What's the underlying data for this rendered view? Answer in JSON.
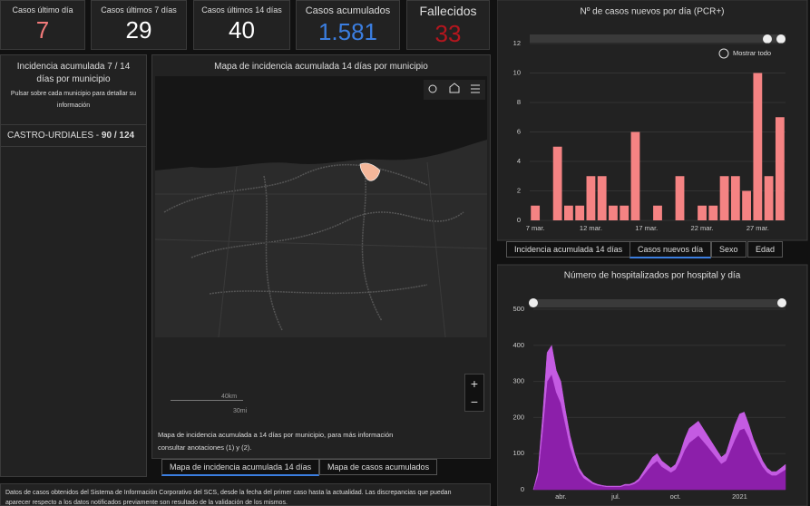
{
  "kpis": [
    {
      "label": "Casos último día",
      "value": "7",
      "color": "#f27a7a"
    },
    {
      "label": "Casos últimos 7 días",
      "value": "29",
      "color": "#ffffff"
    },
    {
      "label": "Casos últimos 14 días",
      "value": "40",
      "color": "#ffffff"
    },
    {
      "label": "Casos acumulados",
      "value": "1.581",
      "color": "#3b7ee0"
    },
    {
      "label": "Fallecidos",
      "value": "33",
      "color": "#b5161e"
    }
  ],
  "left_panel": {
    "title": "Incidencia acumulada 7 / 14 días por municipio",
    "hint": "Pulsar sobre cada municipio para detallar su información",
    "selection": {
      "name": "CASTRO-URDIALES",
      "separator": "-",
      "value": "90 / 124"
    }
  },
  "map": {
    "title": "Mapa de incidencia acumulada 14 días por municipio",
    "scale_km": "40km",
    "scale_mi": "30mi",
    "caption": "Mapa de incidencia acumulada a 14 días por municipio, para más información consultar anotaciones (1) y (2).",
    "tabs": [
      "Mapa de incidencia acumulada 14 días",
      "Mapa de casos acumulados"
    ]
  },
  "reset_zoom": "Mostrar todo",
  "chart_tabs": [
    "Incidencia acumulada 14 días",
    "Casos nuevos día",
    "Sexo",
    "Edad"
  ],
  "footer_text": "Datos de casos obtenidos del Sistema de Información Corporativo del SCS, desde la fecha del primer caso hasta la actualidad. Las discrepancias que puedan aparecer respecto a los datos notificados previamente son resultado de la validación de los mismos.",
  "chart_data": [
    {
      "type": "bar",
      "title": "Nº de casos nuevos por día (PCR+)",
      "categories": [
        "7 mar.",
        null,
        null,
        null,
        null,
        "12 mar.",
        null,
        null,
        null,
        null,
        "17 mar.",
        null,
        null,
        null,
        null,
        "22 mar.",
        null,
        null,
        null,
        null,
        "27 mar.",
        null,
        null
      ],
      "values": [
        1,
        0,
        5,
        1,
        1,
        3,
        3,
        1,
        1,
        6,
        0,
        1,
        0,
        3,
        0,
        1,
        1,
        3,
        3,
        2,
        10,
        3,
        7
      ],
      "color": "#f58383",
      "ylim": [
        0,
        12
      ],
      "yticks": [
        0,
        2,
        4,
        6,
        8,
        10,
        12
      ],
      "grid": true
    },
    {
      "type": "area",
      "title": "Número de hospitalizados por hospital y día",
      "categories": [
        null,
        null,
        null,
        null,
        null,
        null,
        "abr.",
        null,
        null,
        null,
        null,
        null,
        null,
        null,
        null,
        null,
        null,
        null,
        "jul.",
        null,
        null,
        null,
        null,
        null,
        null,
        null,
        null,
        null,
        null,
        null,
        null,
        "oct.",
        null,
        null,
        null,
        null,
        null,
        null,
        null,
        null,
        null,
        null,
        null,
        null,
        null,
        "2021",
        null,
        null,
        null,
        null,
        null,
        null,
        null,
        null,
        null,
        null
      ],
      "series": [
        {
          "color": "#8c1faa",
          "values": [
            0,
            40,
            160,
            300,
            320,
            270,
            240,
            180,
            120,
            80,
            50,
            32,
            24,
            16,
            12,
            10,
            8,
            8,
            8,
            8,
            12,
            12,
            16,
            24,
            40,
            56,
            70,
            80,
            64,
            56,
            48,
            56,
            80,
            110,
            130,
            140,
            150,
            135,
            120,
            104,
            88,
            72,
            80,
            110,
            140,
            165,
            170,
            145,
            112,
            88,
            64,
            48,
            40,
            40,
            48,
            56
          ]
        },
        {
          "color": "#c45be2",
          "values": [
            0,
            10,
            40,
            80,
            80,
            60,
            60,
            40,
            30,
            20,
            10,
            8,
            6,
            4,
            3,
            2,
            2,
            2,
            2,
            2,
            3,
            3,
            4,
            6,
            10,
            14,
            20,
            20,
            16,
            14,
            12,
            14,
            20,
            30,
            40,
            40,
            40,
            35,
            30,
            26,
            22,
            18,
            20,
            30,
            40,
            45,
            45,
            35,
            28,
            22,
            16,
            12,
            10,
            10,
            12,
            14
          ]
        }
      ],
      "stacked": true,
      "ylim": [
        0,
        500
      ],
      "yticks": [
        0,
        100,
        200,
        300,
        400,
        500
      ],
      "grid": true
    }
  ]
}
